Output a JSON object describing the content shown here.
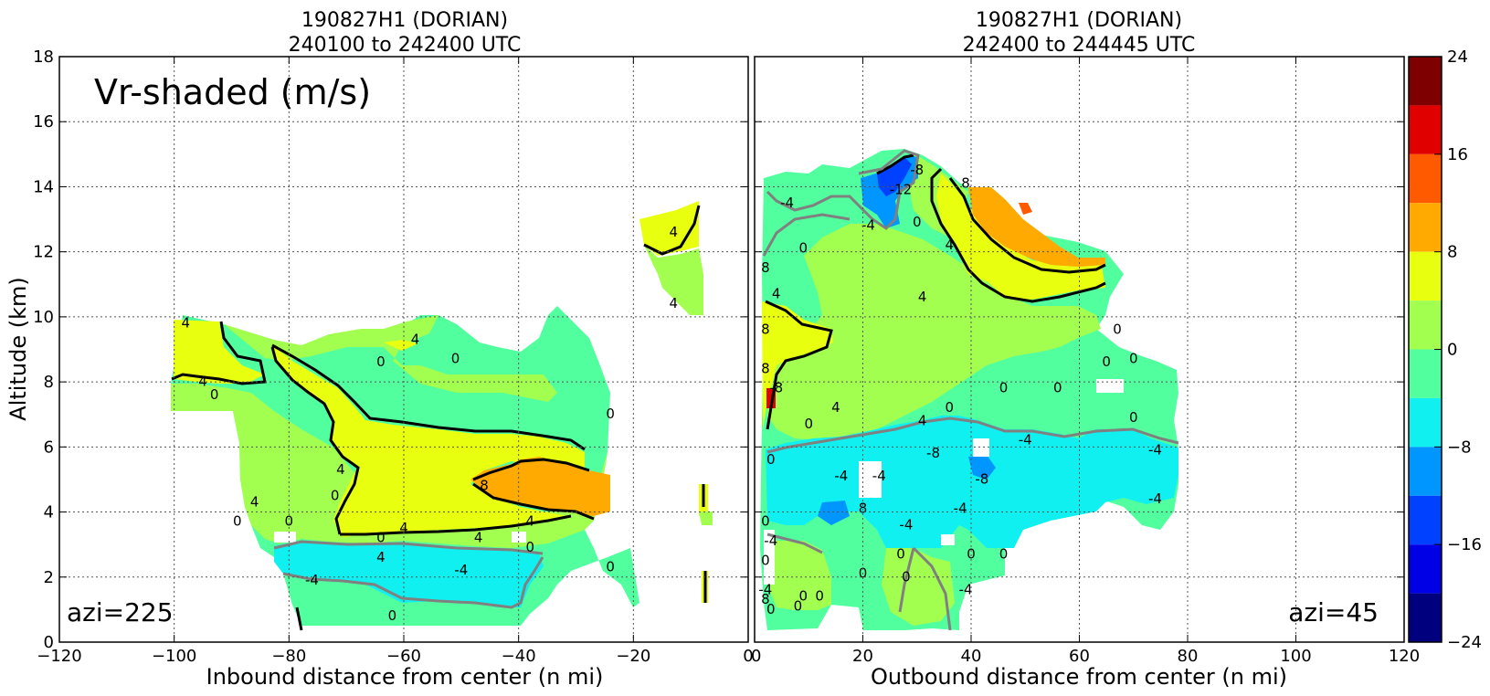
{
  "chart_data": {
    "type": "heatmap",
    "panels": [
      {
        "id": "left",
        "title_line1": "190827H1 (DORIAN)",
        "title_line2": "240100 to 242400 UTC",
        "xlabel": "Inbound distance from center (n mi)",
        "ylabel": "Altitude (km)",
        "xlim": [
          -120,
          0
        ],
        "ylim": [
          0,
          18
        ],
        "xticks": [
          -120,
          -100,
          -80,
          -60,
          -40,
          -20,
          0
        ],
        "yticks": [
          0,
          2,
          4,
          6,
          8,
          10,
          12,
          14,
          16,
          18
        ],
        "inset_label": "Vr-shaded (m/s)",
        "azi_label": "azi=225",
        "grid": true,
        "contour_labels": [
          {
            "text": "4",
            "x": -98,
            "y": 9.8
          },
          {
            "text": "4",
            "x": -95,
            "y": 8.0
          },
          {
            "text": "0",
            "x": -93,
            "y": 7.6
          },
          {
            "text": "4",
            "x": -58,
            "y": 9.3
          },
          {
            "text": "0",
            "x": -64,
            "y": 8.6
          },
          {
            "text": "0",
            "x": -51,
            "y": 8.7
          },
          {
            "text": "0",
            "x": -24,
            "y": 7.0
          },
          {
            "text": "4",
            "x": -71,
            "y": 5.3
          },
          {
            "text": "0",
            "x": -72,
            "y": 4.5
          },
          {
            "text": "4",
            "x": -86,
            "y": 4.3
          },
          {
            "text": "0",
            "x": -89,
            "y": 3.7
          },
          {
            "text": "0",
            "x": -80,
            "y": 3.7
          },
          {
            "text": "0",
            "x": -64,
            "y": 3.2
          },
          {
            "text": "4",
            "x": -60,
            "y": 3.5
          },
          {
            "text": "4",
            "x": -47,
            "y": 3.2
          },
          {
            "text": "4",
            "x": -38,
            "y": 3.7
          },
          {
            "text": "0",
            "x": -38,
            "y": 2.9
          },
          {
            "text": "8",
            "x": -46,
            "y": 4.8
          },
          {
            "text": "4",
            "x": -64,
            "y": 2.6
          },
          {
            "text": "-4",
            "x": -50,
            "y": 2.2
          },
          {
            "text": "-4",
            "x": -76,
            "y": 1.9
          },
          {
            "text": "0",
            "x": -24,
            "y": 2.3
          },
          {
            "text": "0",
            "x": -62,
            "y": 0.8
          },
          {
            "text": "4",
            "x": -13,
            "y": 12.6
          },
          {
            "text": "4",
            "x": -13,
            "y": 10.4
          }
        ]
      },
      {
        "id": "right",
        "title_line1": "190827H1 (DORIAN)",
        "title_line2": "242400 to 244445 UTC",
        "xlabel": "Outbound distance from center (n mi)",
        "xlim": [
          0,
          120
        ],
        "ylim": [
          0,
          18
        ],
        "xticks": [
          0,
          20,
          40,
          60,
          80,
          100,
          120
        ],
        "yticks": [
          0,
          2,
          4,
          6,
          8,
          10,
          12,
          14,
          16,
          18
        ],
        "azi_label": "azi=45",
        "grid": true,
        "contour_labels": [
          {
            "text": "-12",
            "x": 27,
            "y": 13.9
          },
          {
            "text": "-8",
            "x": 30,
            "y": 14.5
          },
          {
            "text": "8",
            "x": 39,
            "y": 14.1
          },
          {
            "text": "-4",
            "x": 21,
            "y": 12.8
          },
          {
            "text": "0",
            "x": 30,
            "y": 12.9
          },
          {
            "text": "-4",
            "x": 6,
            "y": 13.5
          },
          {
            "text": "0",
            "x": 9,
            "y": 12.1
          },
          {
            "text": "4",
            "x": 36,
            "y": 12.2
          },
          {
            "text": "8",
            "x": 2,
            "y": 11.5
          },
          {
            "text": "4",
            "x": 4,
            "y": 10.7
          },
          {
            "text": "4",
            "x": 31,
            "y": 10.6
          },
          {
            "text": "8",
            "x": 2,
            "y": 9.6
          },
          {
            "text": "8",
            "x": 2,
            "y": 8.4
          },
          {
            "text": "-8",
            "x": 4,
            "y": 7.8
          },
          {
            "text": "0",
            "x": 10,
            "y": 6.7
          },
          {
            "text": "4",
            "x": 15,
            "y": 7.2
          },
          {
            "text": "4",
            "x": 31,
            "y": 6.8
          },
          {
            "text": "0",
            "x": 36,
            "y": 7.2
          },
          {
            "text": "-8",
            "x": 33,
            "y": 5.8
          },
          {
            "text": "-8",
            "x": 42,
            "y": 5.0
          },
          {
            "text": "-4",
            "x": 50,
            "y": 6.2
          },
          {
            "text": "0",
            "x": 46,
            "y": 7.8
          },
          {
            "text": "0",
            "x": 56,
            "y": 7.8
          },
          {
            "text": "0",
            "x": 65,
            "y": 8.6
          },
          {
            "text": "0",
            "x": 67,
            "y": 9.6
          },
          {
            "text": "0",
            "x": 70,
            "y": 8.7
          },
          {
            "text": "0",
            "x": 70,
            "y": 6.9
          },
          {
            "text": "-4",
            "x": 74,
            "y": 5.9
          },
          {
            "text": "-4",
            "x": 74,
            "y": 4.4
          },
          {
            "text": "-4",
            "x": 16,
            "y": 5.1
          },
          {
            "text": "-4",
            "x": 23,
            "y": 5.1
          },
          {
            "text": "8",
            "x": 20,
            "y": 4.1
          },
          {
            "text": "-4",
            "x": 28,
            "y": 3.6
          },
          {
            "text": "-4",
            "x": 38,
            "y": 4.1
          },
          {
            "text": "0",
            "x": 3,
            "y": 5.6
          },
          {
            "text": "0",
            "x": 2,
            "y": 3.7
          },
          {
            "text": "-4",
            "x": 3,
            "y": 3.1
          },
          {
            "text": "0",
            "x": 2,
            "y": 2.5
          },
          {
            "text": "0",
            "x": 27,
            "y": 2.7
          },
          {
            "text": "0",
            "x": 40,
            "y": 2.7
          },
          {
            "text": "0",
            "x": 46,
            "y": 2.7
          },
          {
            "text": "0",
            "x": 20,
            "y": 2.1
          },
          {
            "text": "0",
            "x": 28,
            "y": 2.0
          },
          {
            "text": "-4",
            "x": 39,
            "y": 1.6
          },
          {
            "text": "0",
            "x": 9,
            "y": 1.4
          },
          {
            "text": "0",
            "x": 12,
            "y": 1.4
          },
          {
            "text": "-4",
            "x": 2,
            "y": 1.6
          },
          {
            "text": "8",
            "x": 2,
            "y": 1.3
          },
          {
            "text": "0",
            "x": 3,
            "y": 1.0
          },
          {
            "text": "0",
            "x": 8,
            "y": 1.1
          }
        ]
      }
    ],
    "colorbar": {
      "label_values": [
        "24",
        "16",
        "8",
        "0",
        "−8",
        "−16",
        "−24"
      ],
      "range": [
        -24,
        24
      ],
      "bands": [
        {
          "lo": 20,
          "hi": 24,
          "color": "#7f0000"
        },
        {
          "lo": 16,
          "hi": 20,
          "color": "#e00000"
        },
        {
          "lo": 12,
          "hi": 16,
          "color": "#ff5a00"
        },
        {
          "lo": 8,
          "hi": 12,
          "color": "#ffaa00"
        },
        {
          "lo": 4,
          "hi": 8,
          "color": "#e8ff10"
        },
        {
          "lo": 0,
          "hi": 4,
          "color": "#a2ff50"
        },
        {
          "lo": -4,
          "hi": 0,
          "color": "#52ff9f"
        },
        {
          "lo": -8,
          "hi": -4,
          "color": "#10f0f0"
        },
        {
          "lo": -12,
          "hi": -8,
          "color": "#0096ff"
        },
        {
          "lo": -16,
          "hi": -12,
          "color": "#0040ff"
        },
        {
          "lo": -20,
          "hi": -16,
          "color": "#0000e6"
        },
        {
          "lo": -24,
          "hi": -20,
          "color": "#00007f"
        }
      ]
    }
  }
}
